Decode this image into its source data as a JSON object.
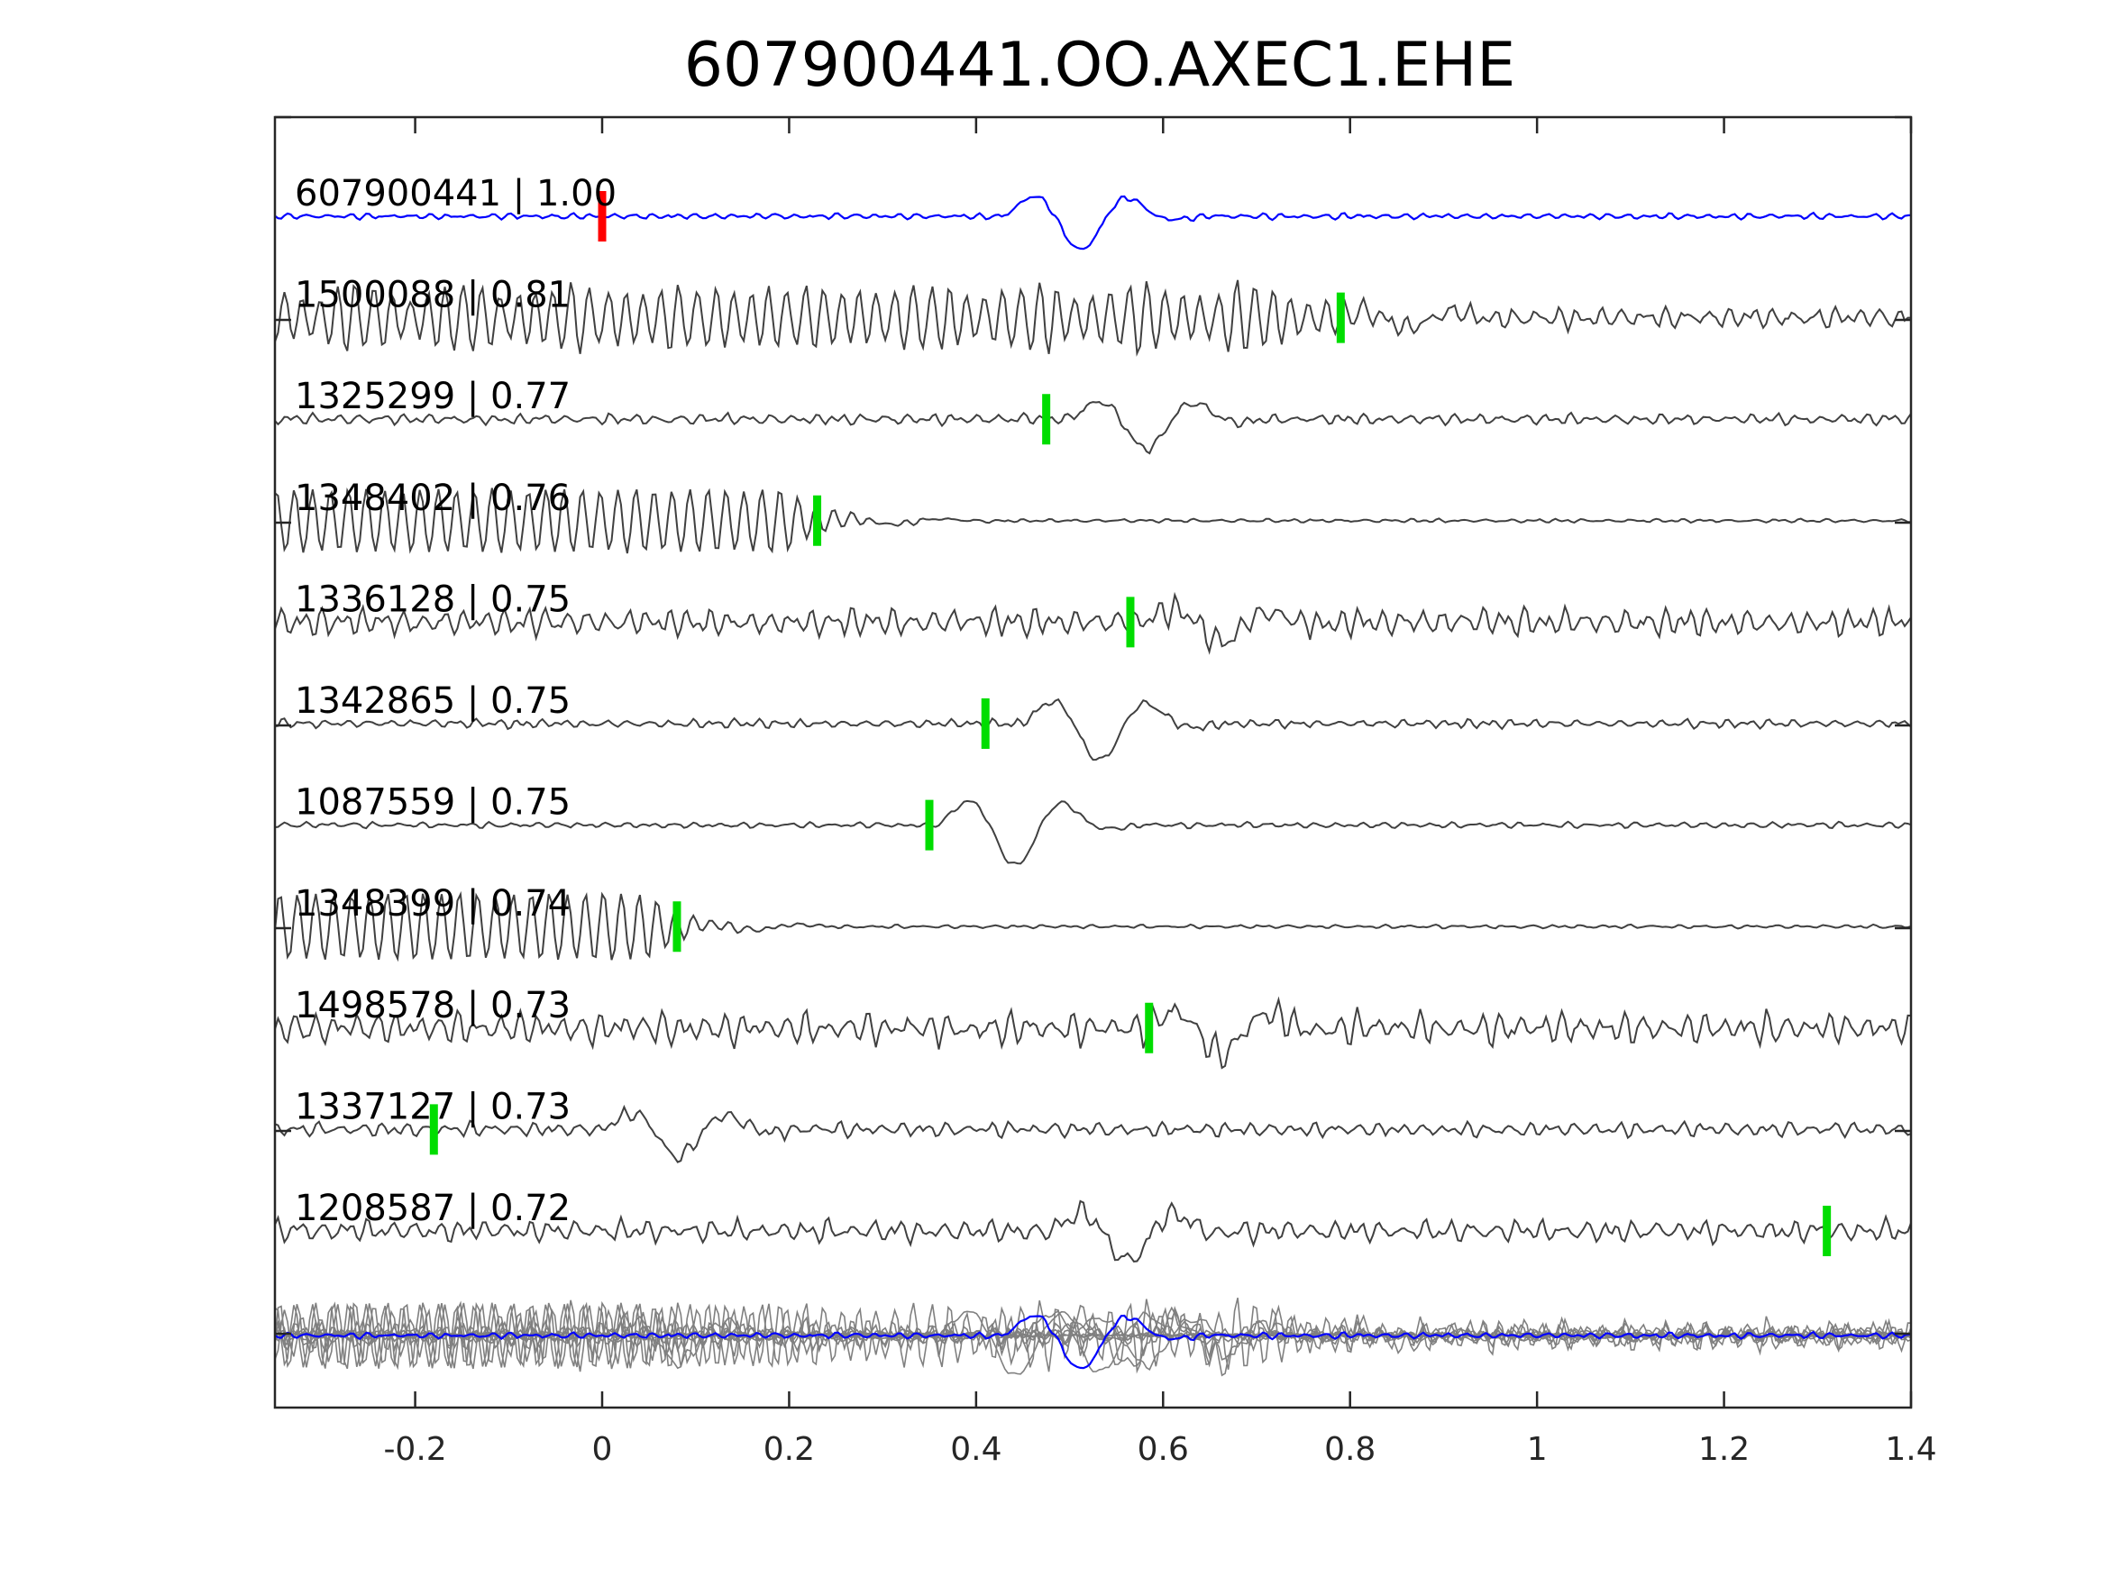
{
  "chart_data": {
    "type": "line",
    "title": "607900441.OO.AXEC1.EHE",
    "xlim": [
      -0.35,
      1.4
    ],
    "xticks": [
      {
        "value": -0.2,
        "label": "-0.2"
      },
      {
        "value": 0,
        "label": "0"
      },
      {
        "value": 0.2,
        "label": "0.2"
      },
      {
        "value": 0.4,
        "label": "0.4"
      },
      {
        "value": 0.6,
        "label": "0.6"
      },
      {
        "value": 0.8,
        "label": "0.8"
      },
      {
        "value": 1,
        "label": "1"
      },
      {
        "value": 1.2,
        "label": "1.2"
      },
      {
        "value": 1.4,
        "label": "1.4"
      }
    ],
    "grid": false,
    "colors": {
      "reference_trace": "#0000ff",
      "template_traces": "#404040",
      "stack_traces": "#808080",
      "reference_pick": "#ff0000",
      "template_pick": "#00dd00"
    },
    "traces": [
      {
        "label": "607900441 | 1.00",
        "id": "607900441",
        "cc": 1.0,
        "pick_time": 0.0,
        "pick_color": "red",
        "is_reference": true,
        "amplitude": 0.5,
        "onset": 0.45,
        "noise": 0.08
      },
      {
        "label": "1500088 | 0.81",
        "id": "1500088",
        "cc": 0.81,
        "pick_time": 0.79,
        "pick_color": "green",
        "amplitude": 0.15,
        "onset": 0.8,
        "noise": 0.3,
        "early_osc": 0.65
      },
      {
        "label": "1325299 | 0.77",
        "id": "1325299",
        "cc": 0.77,
        "pick_time": 0.475,
        "pick_color": "green",
        "amplitude": 0.45,
        "onset": 0.52,
        "noise": 0.15
      },
      {
        "label": "1348402 | 0.76",
        "id": "1348402",
        "cc": 0.76,
        "pick_time": 0.23,
        "pick_color": "green",
        "amplitude": 0.05,
        "onset": 0.25,
        "noise": 0.05,
        "early_osc": 0.75
      },
      {
        "label": "1336128 | 0.75",
        "id": "1336128",
        "cc": 0.75,
        "pick_time": 0.565,
        "pick_color": "green",
        "amplitude": 0.3,
        "onset": 0.6,
        "noise": 0.4
      },
      {
        "label": "1342865 | 0.75",
        "id": "1342865",
        "cc": 0.75,
        "pick_time": 0.41,
        "pick_color": "green",
        "amplitude": 0.55,
        "onset": 0.47,
        "noise": 0.12
      },
      {
        "label": "1087559 | 0.75",
        "id": "1087559",
        "cc": 0.75,
        "pick_time": 0.35,
        "pick_color": "green",
        "amplitude": 0.6,
        "onset": 0.38,
        "noise": 0.08
      },
      {
        "label": "1348399 | 0.74",
        "id": "1348399",
        "cc": 0.74,
        "pick_time": 0.08,
        "pick_color": "green",
        "amplitude": 0.05,
        "onset": 0.1,
        "noise": 0.05,
        "early_osc": 0.8
      },
      {
        "label": "1498578 | 0.73",
        "id": "1498578",
        "cc": 0.73,
        "pick_time": 0.585,
        "pick_color": "green",
        "amplitude": 0.4,
        "onset": 0.6,
        "noise": 0.45
      },
      {
        "label": "1337127 | 0.73",
        "id": "1337127",
        "cc": 0.73,
        "pick_time": -0.18,
        "pick_color": "green",
        "amplitude": 0.4,
        "onset": 0.02,
        "noise": 0.2
      },
      {
        "label": "1208587 | 0.72",
        "id": "1208587",
        "cc": 0.72,
        "pick_time": 1.31,
        "pick_color": "green",
        "amplitude": 0.45,
        "onset": 0.5,
        "noise": 0.3
      }
    ],
    "stack": {
      "description_visible": false
    }
  }
}
